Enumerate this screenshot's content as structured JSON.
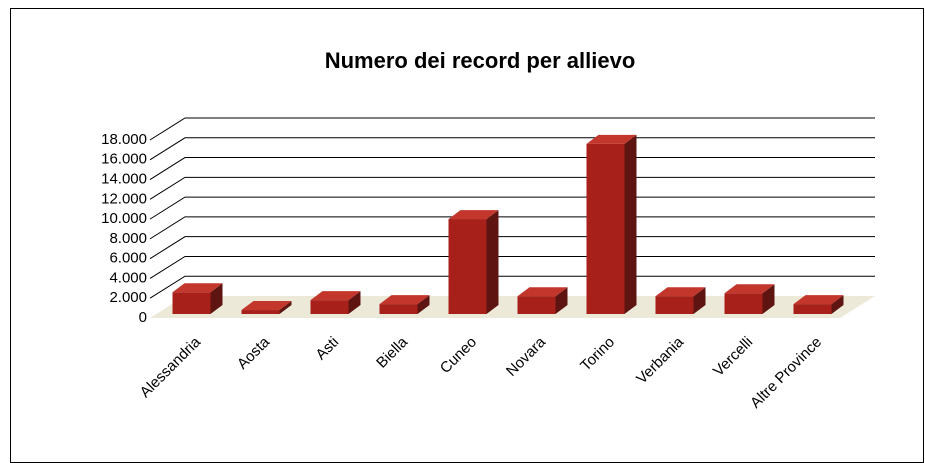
{
  "chart_data": {
    "type": "bar3d",
    "title": "Numero dei record per allievo",
    "categories": [
      "Alessandria",
      "Aosta",
      "Asti",
      "Biella",
      "Cuneo",
      "Novara",
      "Torino",
      "Verbania",
      "Vercelli",
      "Altre Province"
    ],
    "values": [
      2200,
      400,
      1400,
      1000,
      9600,
      1800,
      17200,
      1800,
      2100,
      1000
    ],
    "color": "#a8201a",
    "ylim": [
      0,
      18000
    ],
    "yticks": [
      0,
      {
        "value": 2000,
        "label": "2.000"
      },
      {
        "value": 4000,
        "label": "4.000"
      },
      {
        "value": 6000,
        "label": "6.000"
      },
      {
        "value": 8000,
        "label": "8.000"
      },
      {
        "value": 10000,
        "label": "10.000"
      },
      {
        "value": 12000,
        "label": "12.000"
      },
      {
        "value": 14000,
        "label": "14.000"
      },
      {
        "value": 16000,
        "label": "16.000"
      },
      {
        "value": 18000,
        "label": "18.000"
      }
    ],
    "grid": true
  }
}
